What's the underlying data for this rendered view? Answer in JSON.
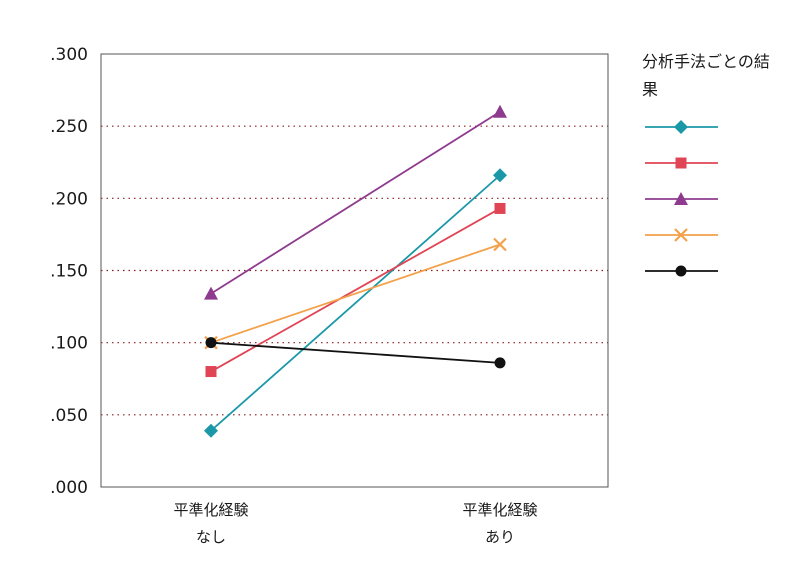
{
  "chart_data": {
    "type": "line",
    "categories": [
      [
        "平準化経験",
        "なし"
      ],
      [
        "平準化経験",
        "あり"
      ]
    ],
    "ylim": [
      0,
      0.3
    ],
    "yticks": [
      ".000",
      ".050",
      ".100",
      ".150",
      ".200",
      ".250",
      ".300"
    ],
    "grid": "horizontal-dotted",
    "legend_title": "分析手法ごとの結果",
    "legend_placement": "right",
    "series": [
      {
        "color": "#1b98a7",
        "marker": "diamond",
        "values": [
          0.039,
          0.216
        ]
      },
      {
        "color": "#e04555",
        "marker": "square",
        "values": [
          0.08,
          0.193
        ]
      },
      {
        "color": "#8e3b8f",
        "marker": "triangle",
        "values": [
          0.134,
          0.26
        ]
      },
      {
        "color": "#f3a14a",
        "marker": "x",
        "values": [
          0.1,
          0.168
        ]
      },
      {
        "color": "#111111",
        "marker": "circle",
        "values": [
          0.1,
          0.086
        ]
      }
    ]
  }
}
